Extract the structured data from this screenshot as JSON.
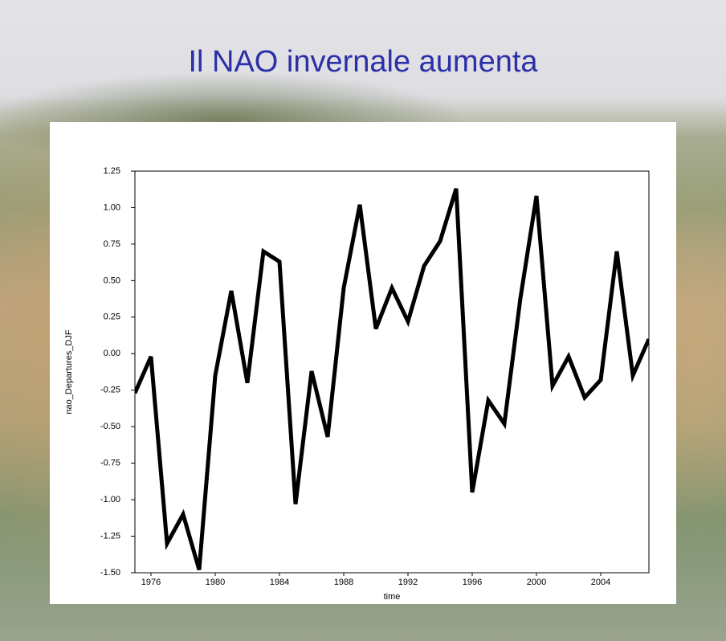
{
  "title": "Il NAO invernale aumenta",
  "chart_data": {
    "type": "line",
    "xlabel": "time",
    "ylabel": "nao_Departures_DJF",
    "x": [
      1975,
      1976,
      1977,
      1978,
      1979,
      1980,
      1981,
      1982,
      1983,
      1984,
      1985,
      1986,
      1987,
      1988,
      1989,
      1990,
      1991,
      1992,
      1993,
      1994,
      1995,
      1996,
      1997,
      1998,
      1999,
      2000,
      2001,
      2002,
      2003,
      2004,
      2005,
      2006,
      2007
    ],
    "series": [
      {
        "color": "#000000",
        "values": [
          -0.27,
          -0.02,
          -1.3,
          -1.1,
          -1.48,
          -0.15,
          0.43,
          -0.2,
          0.7,
          0.63,
          -1.03,
          -0.12,
          -0.57,
          0.45,
          1.02,
          0.17,
          0.45,
          0.22,
          0.6,
          0.77,
          1.13,
          -0.95,
          -0.32,
          -0.48,
          0.38,
          1.08,
          -0.22,
          -0.02,
          -0.3,
          -0.18,
          0.7,
          -0.15,
          0.1
        ]
      }
    ],
    "xlim": [
      1975,
      2007
    ],
    "xticks": [
      1976,
      1980,
      1984,
      1988,
      1992,
      1996,
      2000,
      2004
    ],
    "ylim": [
      -1.5,
      1.25
    ],
    "yticks": [
      {
        "value": -1.5,
        "label": "-1.50"
      },
      {
        "value": -1.25,
        "label": "-1.25"
      },
      {
        "value": -1,
        "label": "-1.00"
      },
      {
        "value": -0.75,
        "label": "-0.75"
      },
      {
        "value": -0.5,
        "label": "-0.50"
      },
      {
        "value": -0.25,
        "label": "-0.25"
      },
      {
        "value": 0,
        "label": "0.00"
      },
      {
        "value": 0.25,
        "label": "0.25"
      },
      {
        "value": 0.5,
        "label": "0.50"
      },
      {
        "value": 0.75,
        "label": "0.75"
      },
      {
        "value": 1,
        "label": "1.00"
      },
      {
        "value": 1.25,
        "label": "1.25"
      }
    ],
    "grid": false
  }
}
